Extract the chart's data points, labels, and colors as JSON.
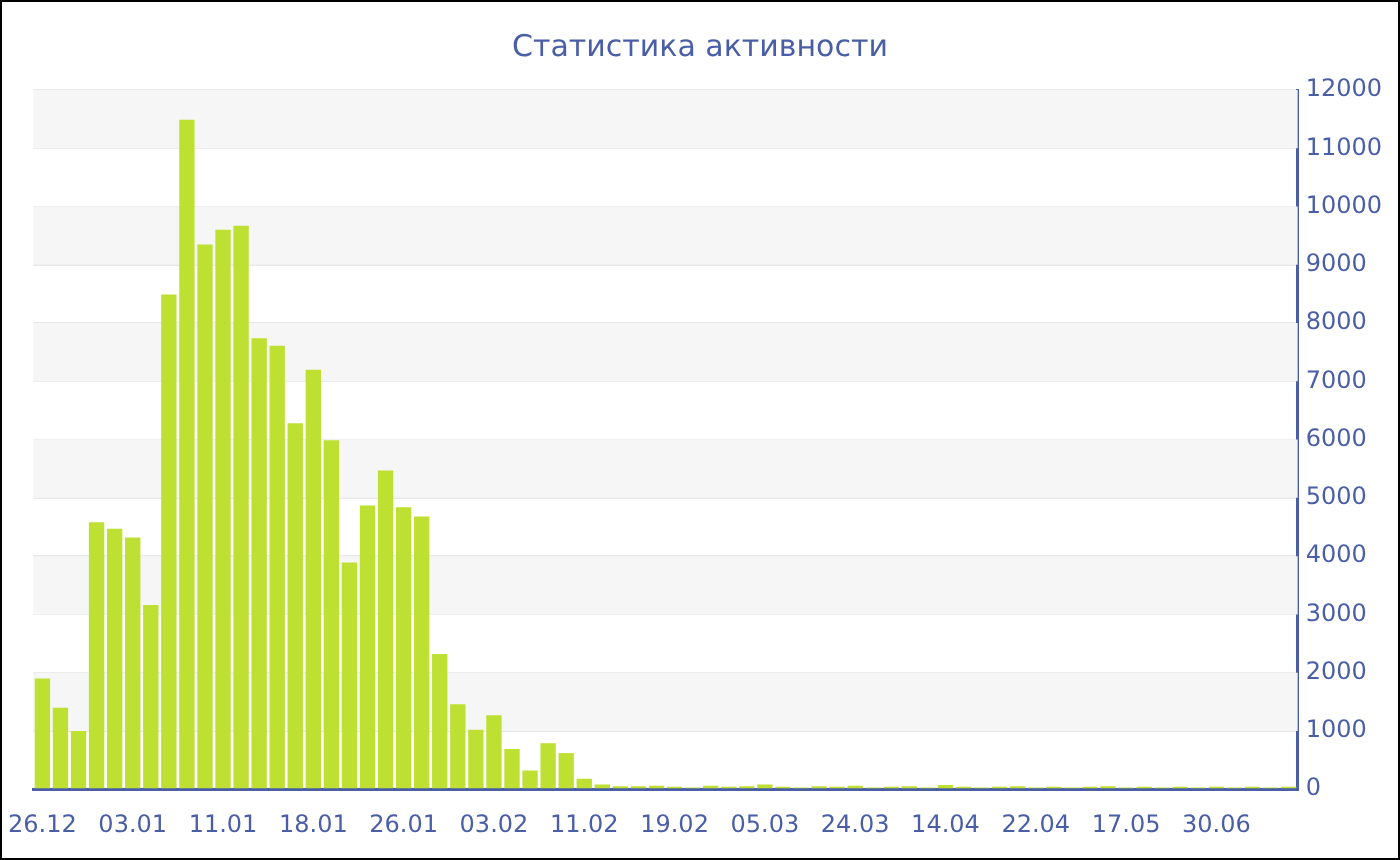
{
  "chart_data": {
    "type": "bar",
    "title": "Статистика активности",
    "categories": [
      "26.12",
      null,
      null,
      null,
      null,
      "03.01",
      null,
      null,
      null,
      null,
      "11.01",
      null,
      null,
      null,
      null,
      "18.01",
      null,
      null,
      null,
      null,
      "26.01",
      null,
      null,
      null,
      null,
      "03.02",
      null,
      null,
      null,
      null,
      "11.02",
      null,
      null,
      null,
      null,
      "19.02",
      null,
      null,
      null,
      null,
      "05.03",
      null,
      null,
      null,
      null,
      "24.03",
      null,
      null,
      null,
      null,
      "14.04",
      null,
      null,
      null,
      null,
      "22.04",
      null,
      null,
      null,
      null,
      "17.05",
      null,
      null,
      null,
      null,
      "30.06",
      null,
      null,
      null,
      null
    ],
    "values": [
      1900,
      1400,
      1000,
      4580,
      4470,
      4320,
      3160,
      8490,
      11490,
      9350,
      9600,
      9670,
      7740,
      7610,
      6280,
      7200,
      5990,
      3890,
      4870,
      5470,
      4840,
      4680,
      2320,
      1460,
      1020,
      1270,
      690,
      320,
      790,
      620,
      180,
      80,
      50,
      50,
      60,
      40,
      30,
      60,
      40,
      50,
      80,
      40,
      30,
      50,
      40,
      60,
      30,
      40,
      50,
      30,
      70,
      40,
      30,
      40,
      50,
      30,
      40,
      30,
      40,
      50,
      30,
      40,
      30,
      40,
      30,
      40,
      30,
      40,
      30,
      40
    ],
    "color": "#bde032",
    "ylim": [
      0,
      12000
    ],
    "yticks": [
      0,
      1000,
      2000,
      3000,
      4000,
      5000,
      6000,
      7000,
      8000,
      9000,
      10000,
      11000,
      12000
    ],
    "grid": true
  }
}
